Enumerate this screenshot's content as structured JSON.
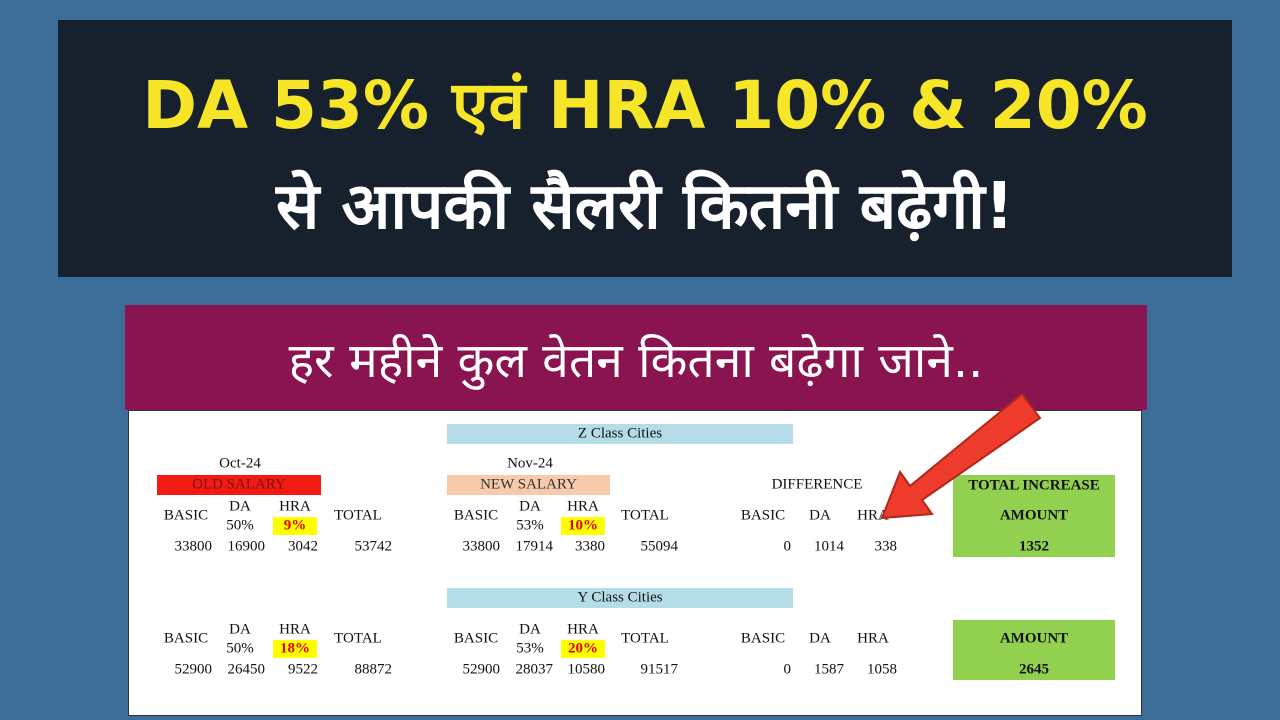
{
  "header": {
    "line1": "DA 53% एवं HRA 10% & 20%",
    "line2": "से आपकी सैलरी कितनी बढ़ेगी!"
  },
  "banner": "हर महीने कुल वेतन कितना बढ़ेगा जाने..",
  "sections": [
    {
      "title": "Z Class Cities",
      "old": {
        "date": "Oct-24",
        "label": "OLD SALARY",
        "columns": [
          "BASIC",
          "DA",
          "HRA",
          "TOTAL"
        ],
        "rates": [
          "50%",
          "9%"
        ],
        "values": [
          33800,
          16900,
          3042,
          53742
        ]
      },
      "new": {
        "date": "Nov-24",
        "label": "NEW SALARY",
        "columns": [
          "BASIC",
          "DA",
          "HRA",
          "TOTAL"
        ],
        "rates": [
          "53%",
          "10%"
        ],
        "values": [
          33800,
          17914,
          3380,
          55094
        ]
      },
      "difference": {
        "label": "DIFFERENCE",
        "columns": [
          "BASIC",
          "DA",
          "HRA"
        ],
        "values": [
          0,
          1014,
          338
        ]
      },
      "total": {
        "label": "TOTAL INCREASE",
        "amount_label": "AMOUNT",
        "value": 1352
      }
    },
    {
      "title": "Y Class Cities",
      "old": {
        "columns": [
          "BASIC",
          "DA",
          "HRA",
          "TOTAL"
        ],
        "rates": [
          "50%",
          "18%"
        ],
        "values": [
          52900,
          26450,
          9522,
          88872
        ]
      },
      "new": {
        "columns": [
          "BASIC",
          "DA",
          "HRA",
          "TOTAL"
        ],
        "rates": [
          "53%",
          "20%"
        ],
        "values": [
          52900,
          28037,
          10580,
          91517
        ]
      },
      "difference": {
        "columns": [
          "BASIC",
          "DA",
          "HRA"
        ],
        "values": [
          0,
          1587,
          1058
        ]
      },
      "total": {
        "amount_label": "AMOUNT",
        "value": 2645
      }
    }
  ]
}
